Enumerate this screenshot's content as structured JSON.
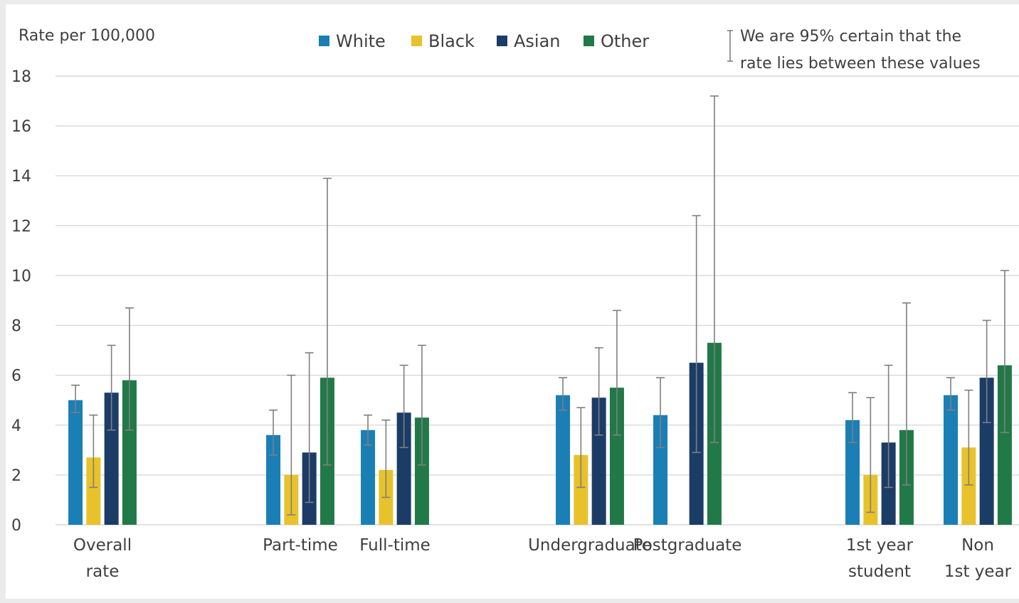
{
  "chart_data": {
    "type": "bar",
    "ylabel": "Rate per 100,000",
    "ylim": [
      0,
      18
    ],
    "yticks": [
      0,
      2,
      4,
      6,
      8,
      10,
      12,
      14,
      16,
      18
    ],
    "grid": true,
    "legend_position": "top",
    "error_bar_note": [
      "We are 95% certain that the",
      "rate lies between these values"
    ],
    "groups": [
      {
        "label_lines": [
          "Overall",
          "rate"
        ]
      },
      {
        "label_lines": [
          "Part-time"
        ]
      },
      {
        "label_lines": [
          "Full-time"
        ]
      },
      {
        "label_lines": [
          "Undergraduate"
        ]
      },
      {
        "label_lines": [
          "Postgraduate"
        ]
      },
      {
        "label_lines": [
          "1st year",
          "student"
        ]
      },
      {
        "label_lines": [
          "Non",
          "1st year"
        ]
      }
    ],
    "series": [
      {
        "name": "White",
        "color": "#1a7fb5",
        "values": [
          5.0,
          3.6,
          3.8,
          5.2,
          4.4,
          4.2,
          5.2
        ],
        "ci_low": [
          4.5,
          2.8,
          3.2,
          4.6,
          3.1,
          3.3,
          4.6
        ],
        "ci_high": [
          5.6,
          4.6,
          4.4,
          5.9,
          5.9,
          5.3,
          5.9
        ]
      },
      {
        "name": "Black",
        "color": "#e8c22b",
        "values": [
          2.7,
          2.0,
          2.2,
          2.8,
          null,
          2.0,
          3.1
        ],
        "ci_low": [
          1.5,
          0.4,
          1.1,
          1.5,
          null,
          0.5,
          1.6
        ],
        "ci_high": [
          4.4,
          6.0,
          4.2,
          4.7,
          null,
          5.1,
          5.4
        ]
      },
      {
        "name": "Asian",
        "color": "#1b3c66",
        "values": [
          5.3,
          2.9,
          4.5,
          5.1,
          6.5,
          3.3,
          5.9
        ],
        "ci_low": [
          3.8,
          0.9,
          3.1,
          3.6,
          2.9,
          1.5,
          4.1
        ],
        "ci_high": [
          7.2,
          6.9,
          6.4,
          7.1,
          12.4,
          6.4,
          8.2
        ]
      },
      {
        "name": "Other",
        "color": "#227948",
        "values": [
          5.8,
          5.9,
          4.3,
          5.5,
          7.3,
          3.8,
          6.4
        ],
        "ci_low": [
          3.8,
          2.4,
          2.4,
          3.6,
          3.3,
          1.6,
          3.7
        ],
        "ci_high": [
          8.7,
          13.9,
          7.2,
          8.6,
          17.2,
          8.9,
          10.2
        ]
      }
    ]
  }
}
